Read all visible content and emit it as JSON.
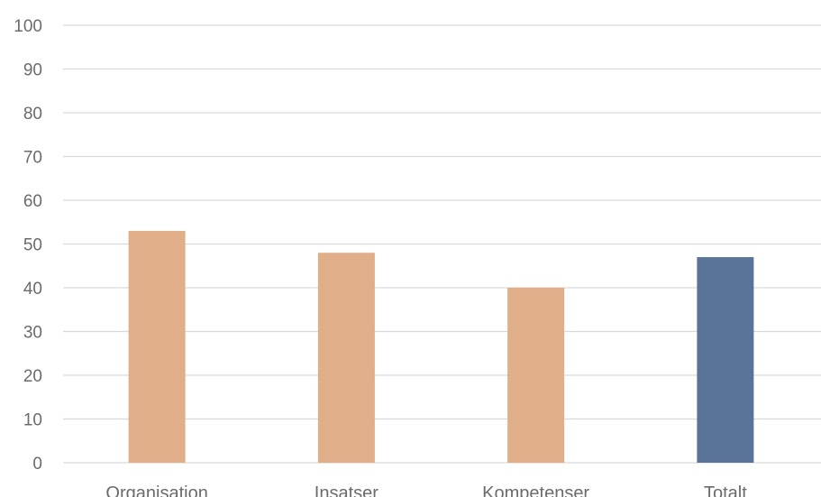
{
  "chart_data": {
    "type": "bar",
    "categories": [
      "Organisation",
      "Insatser",
      "Kompetenser",
      "Totalt"
    ],
    "values": [
      53,
      48,
      40,
      47
    ],
    "colors": [
      "#e0ae88",
      "#e0ae88",
      "#e0ae88",
      "#5a7399"
    ],
    "title": "",
    "xlabel": "",
    "ylabel": "",
    "ylim": [
      0,
      100
    ],
    "yticks": [
      0,
      10,
      20,
      30,
      40,
      50,
      60,
      70,
      80,
      90,
      100
    ],
    "grid": true,
    "legend": "none"
  }
}
